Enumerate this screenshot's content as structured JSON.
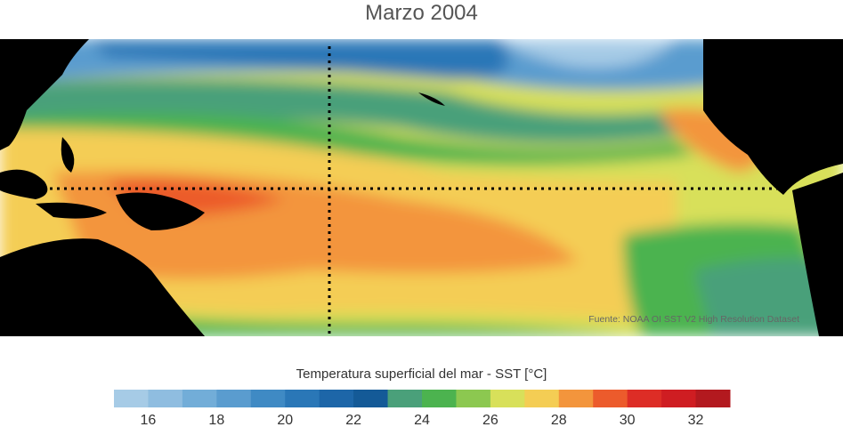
{
  "title": "Marzo 2004",
  "source_note": "Fuente: NOAA OI SST V2 High Resolution Dataset",
  "colorbar": {
    "label": "Temperatura superficial del mar - SST  [°C]",
    "min": 15,
    "max": 33,
    "tick_labels": [
      "16",
      "18",
      "20",
      "22",
      "24",
      "26",
      "28",
      "30",
      "32"
    ],
    "tick_values": [
      16,
      18,
      20,
      22,
      24,
      26,
      28,
      30,
      32
    ],
    "colors": [
      "#a6cbe6",
      "#8fbde0",
      "#72add8",
      "#5a9ccf",
      "#3f8ac4",
      "#2a77b7",
      "#1d66a8",
      "#145a97",
      "#4aa07a",
      "#4cb34f",
      "#8cc850",
      "#d8e05a",
      "#f4cd54",
      "#f3953c",
      "#ec5b2c",
      "#dd2d26",
      "#cf1d22",
      "#b3191f"
    ]
  },
  "map_colors": {
    "land": "#000000",
    "cold": "#a6cbe6",
    "blue_mid": "#5a9ccf",
    "blue_deep": "#2a77b7",
    "teal": "#4aa07a",
    "green": "#4cb34f",
    "yellowgreen": "#d8e05a",
    "yellow": "#f4cd54",
    "orange": "#f3953c",
    "red_orange": "#ec5b2c"
  }
}
